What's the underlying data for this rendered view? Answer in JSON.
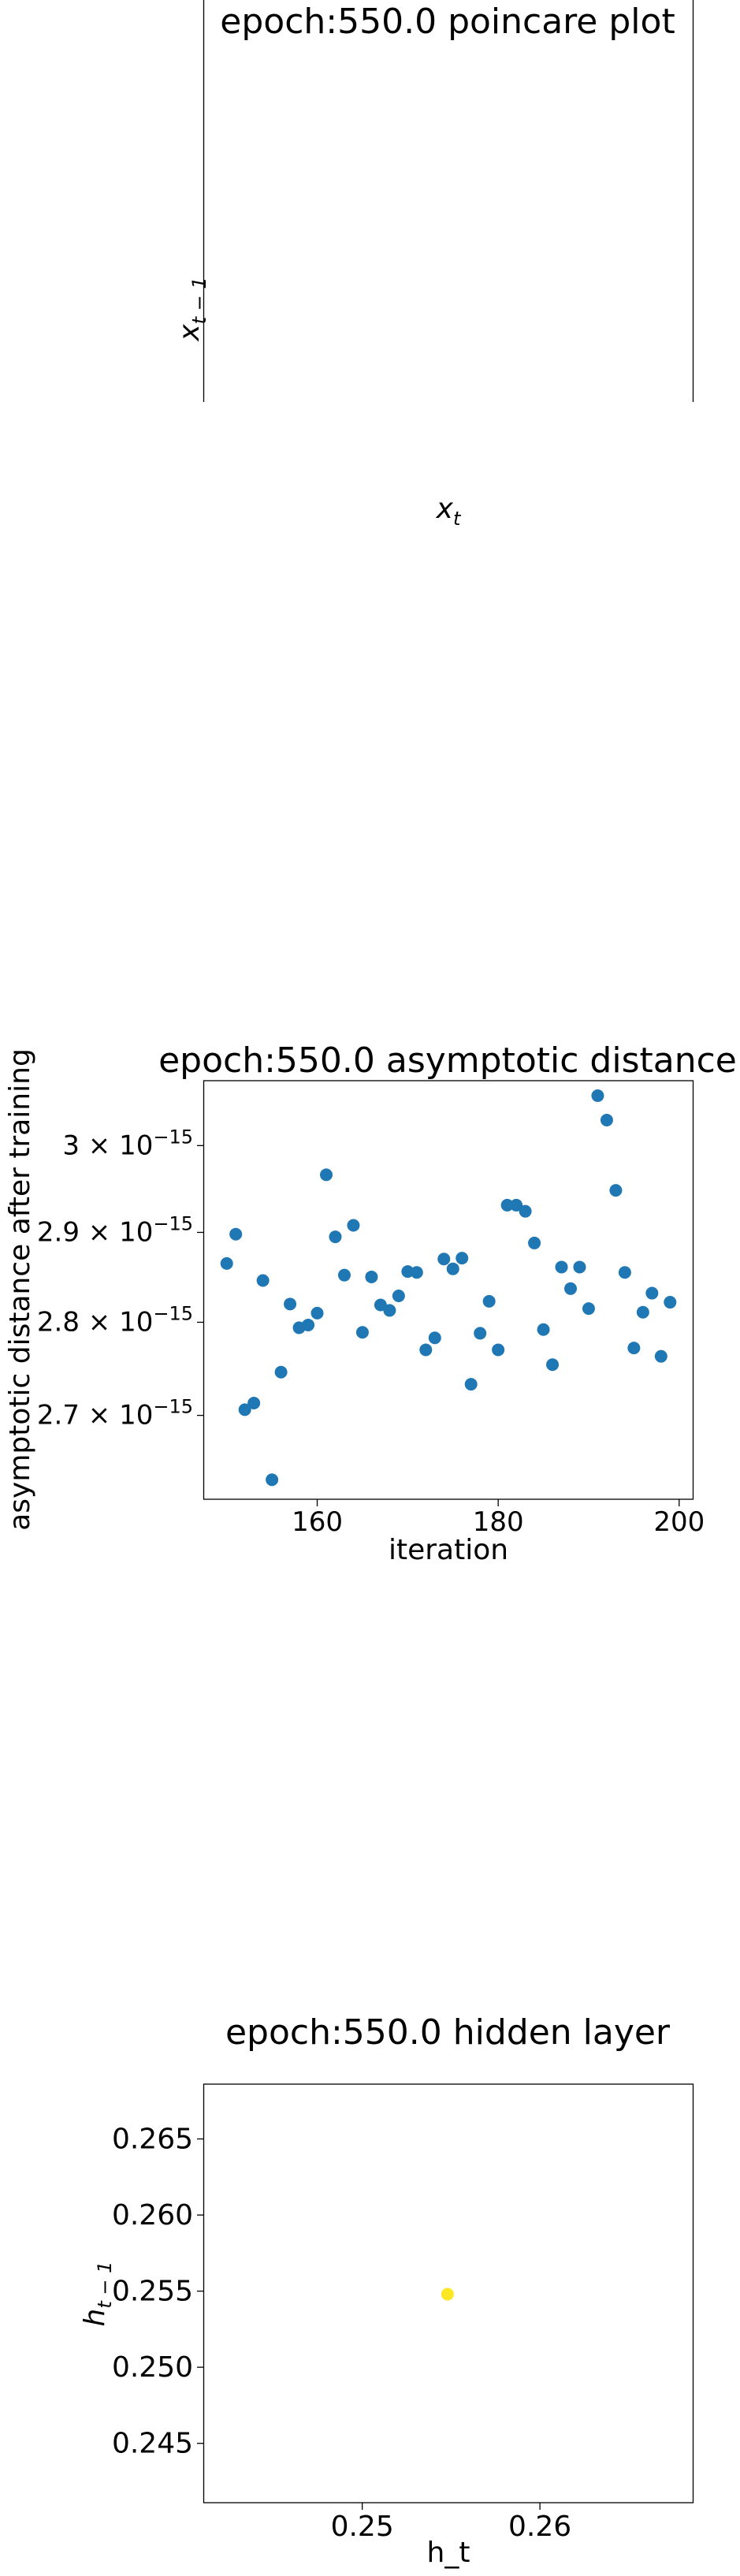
{
  "chart_data": [
    {
      "type": "line",
      "title": "epoch:550.0 poincare plot",
      "xlabel": "x_t",
      "ylabel": "x_{t-1}",
      "series": []
    },
    {
      "type": "scatter",
      "title": "epoch:550.0 asymptotic distance",
      "xlabel": "iteration",
      "ylabel": "asymptotic distance after training",
      "xlim": [
        147.5,
        201.5
      ],
      "ylim": [
        2.613e-15,
        3.077e-15
      ],
      "xticks": [
        160,
        180,
        200
      ],
      "xtick_labels": [
        "160",
        "180",
        "200"
      ],
      "yticks": [
        2.7e-15,
        2.8e-15,
        2.9e-15,
        3e-15
      ],
      "ytick_mantissas": [
        "2.7",
        "2.8",
        "2.9",
        "3"
      ],
      "ytick_base": "10",
      "ytick_exponent": "−15",
      "scale": "log",
      "color": "#1f77b4",
      "x": [
        150,
        151,
        152,
        153,
        154,
        155,
        156,
        157,
        158,
        159,
        160,
        161,
        162,
        163,
        164,
        165,
        166,
        167,
        168,
        169,
        170,
        171,
        172,
        173,
        174,
        175,
        176,
        177,
        178,
        179,
        180,
        181,
        182,
        183,
        184,
        185,
        186,
        187,
        188,
        189,
        190,
        191,
        192,
        193,
        194,
        195,
        196,
        197,
        198,
        199
      ],
      "y": [
        2.865e-15,
        2.898e-15,
        2.706e-15,
        2.713e-15,
        2.846e-15,
        2.633e-15,
        2.746e-15,
        2.82e-15,
        2.794e-15,
        2.797e-15,
        2.81e-15,
        2.966e-15,
        2.895e-15,
        2.852e-15,
        2.908e-15,
        2.789e-15,
        2.85e-15,
        2.819e-15,
        2.813e-15,
        2.829e-15,
        2.856e-15,
        2.855e-15,
        2.77e-15,
        2.783e-15,
        2.87e-15,
        2.859e-15,
        2.871e-15,
        2.733e-15,
        2.788e-15,
        2.823e-15,
        2.77e-15,
        2.931e-15,
        2.931e-15,
        2.924e-15,
        2.888e-15,
        2.792e-15,
        2.754e-15,
        2.861e-15,
        2.837e-15,
        2.861e-15,
        2.815e-15,
        3.059e-15,
        3.03e-15,
        2.948e-15,
        2.855e-15,
        2.772e-15,
        2.811e-15,
        2.832e-15,
        2.763e-15,
        2.822e-15
      ]
    },
    {
      "type": "scatter",
      "title": "epoch:550.0 hidden layer",
      "xlabel": "h_t",
      "ylabel": "h_{t-1}",
      "xlim": [
        0.2411,
        0.2686
      ],
      "ylim": [
        0.2411,
        0.2686
      ],
      "xticks": [
        0.25,
        0.26
      ],
      "xtick_labels": [
        "0.25",
        "0.26"
      ],
      "yticks": [
        0.245,
        0.25,
        0.255,
        0.26,
        0.265
      ],
      "ytick_labels": [
        "0.245",
        "0.250",
        "0.255",
        "0.260",
        "0.265"
      ],
      "color": "#fde725",
      "x": [
        0.2548
      ],
      "y": [
        0.2548
      ]
    }
  ]
}
